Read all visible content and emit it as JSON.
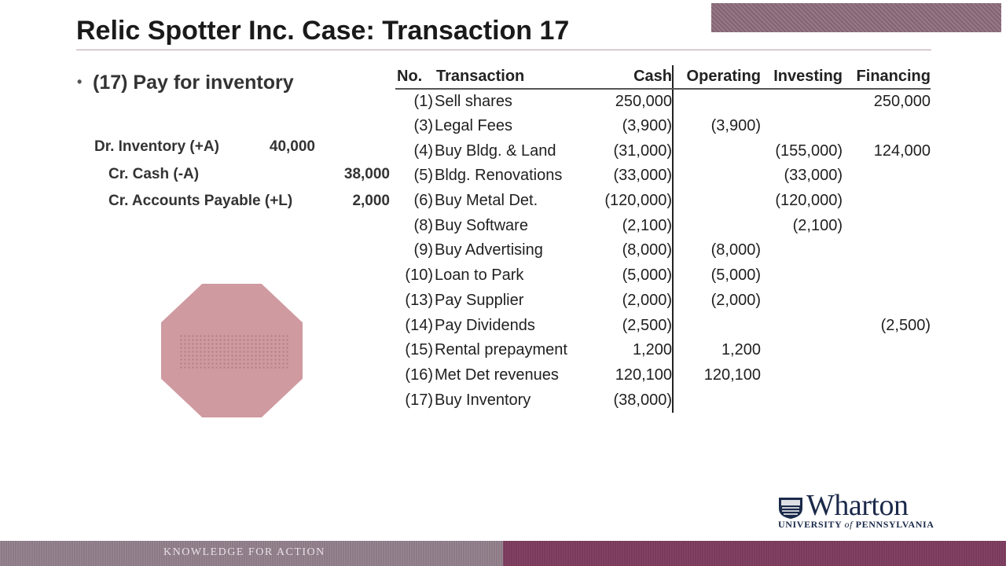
{
  "slide": {
    "title": "Relic Spotter Inc. Case: Transaction 17",
    "bullet": "(17) Pay for inventory",
    "footer_tagline": "KNOWLEDGE FOR ACTION"
  },
  "journal_entry": {
    "debit": {
      "label": "Dr. Inventory (+A)",
      "amount": "40,000"
    },
    "credits": [
      {
        "label": "Cr. Cash (-A)",
        "amount": "38,000"
      },
      {
        "label": "Cr. Accounts Payable (+L)",
        "amount": "2,000"
      }
    ]
  },
  "table": {
    "headers": {
      "no": "No.",
      "transaction": "Transaction",
      "cash": "Cash",
      "operating": "Operating",
      "investing": "Investing",
      "financing": "Financing"
    },
    "rows": [
      {
        "no": "(1)",
        "transaction": "Sell shares",
        "cash": "250,000",
        "operating": "",
        "investing": "",
        "financing": "250,000"
      },
      {
        "no": "(3)",
        "transaction": "Legal Fees",
        "cash": "(3,900)",
        "operating": "(3,900)",
        "investing": "",
        "financing": ""
      },
      {
        "no": "(4)",
        "transaction": "Buy Bldg. & Land",
        "cash": "(31,000)",
        "operating": "",
        "investing": "(155,000)",
        "financing": "124,000"
      },
      {
        "no": "(5)",
        "transaction": "Bldg. Renovations",
        "cash": "(33,000)",
        "operating": "",
        "investing": "(33,000)",
        "financing": ""
      },
      {
        "no": "(6)",
        "transaction": "Buy Metal Det.",
        "cash": "(120,000)",
        "operating": "",
        "investing": "(120,000)",
        "financing": ""
      },
      {
        "no": "(8)",
        "transaction": "Buy Software",
        "cash": "(2,100)",
        "operating": "",
        "investing": "(2,100)",
        "financing": ""
      },
      {
        "no": "(9)",
        "transaction": "Buy Advertising",
        "cash": "(8,000)",
        "operating": "(8,000)",
        "investing": "",
        "financing": ""
      },
      {
        "no": "(10)",
        "transaction": "Loan to Park",
        "cash": "(5,000)",
        "operating": "(5,000)",
        "investing": "",
        "financing": ""
      },
      {
        "no": "(13)",
        "transaction": "Pay Supplier",
        "cash": "(2,000)",
        "operating": "(2,000)",
        "investing": "",
        "financing": ""
      },
      {
        "no": "(14)",
        "transaction": "Pay Dividends",
        "cash": "(2,500)",
        "operating": "",
        "investing": "",
        "financing": "(2,500)"
      },
      {
        "no": "(15)",
        "transaction": "Rental prepayment",
        "cash": "1,200",
        "operating": "1,200",
        "investing": "",
        "financing": ""
      },
      {
        "no": "(16)",
        "transaction": "Met Det revenues",
        "cash": "120,100",
        "operating": "120,100",
        "investing": "",
        "financing": ""
      },
      {
        "no": "(17)",
        "transaction": "Buy Inventory",
        "cash": "(38,000)",
        "operating": "",
        "investing": "",
        "financing": ""
      }
    ]
  },
  "logo": {
    "wordmark": "Wharton",
    "sub_prefix": "UNIVERSITY ",
    "sub_of": "of",
    "sub_suffix": " PENNSYLVANIA"
  },
  "colors": {
    "footer_left": "#8c7a86",
    "footer_right": "#7a3a5c",
    "stop_sign": "#cf9aa0",
    "logo_navy": "#1b2a4a"
  }
}
